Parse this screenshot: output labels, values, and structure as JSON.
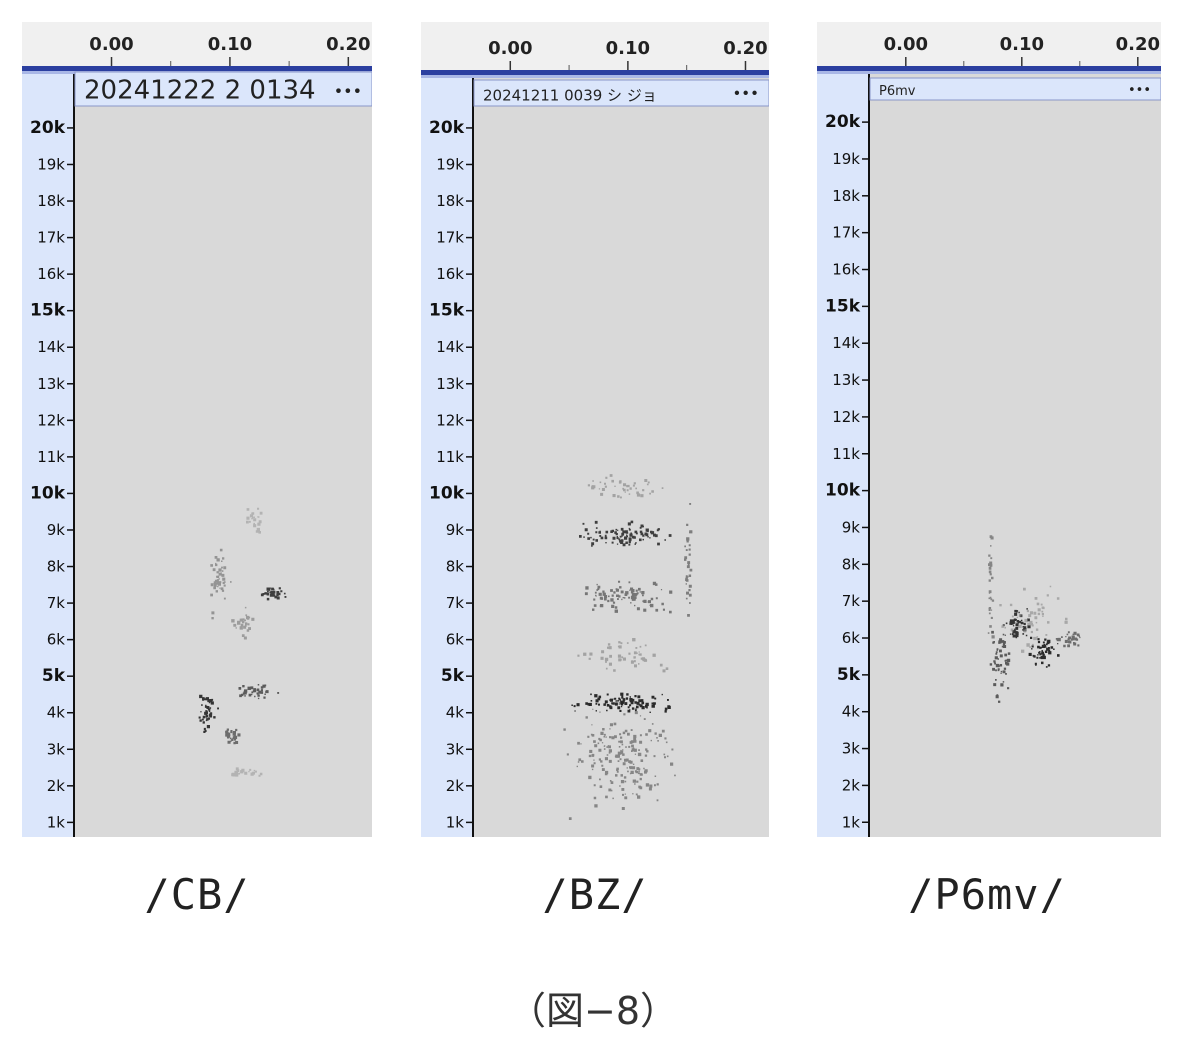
{
  "figure_caption": "（図−8）",
  "time_axis": {
    "ticks": [
      "0.00",
      "0.10",
      "0.20"
    ],
    "values": [
      0.0,
      0.1,
      0.2
    ],
    "range": [
      -0.03,
      0.22
    ]
  },
  "freq_axis": {
    "ticks": [
      "20k",
      "19k",
      "18k",
      "17k",
      "16k",
      "15k",
      "14k",
      "13k",
      "12k",
      "11k",
      "10k",
      "9k",
      "8k",
      "7k",
      "6k",
      "5k",
      "4k",
      "3k",
      "2k",
      "1k"
    ],
    "values": [
      20,
      19,
      18,
      17,
      16,
      15,
      14,
      13,
      12,
      11,
      10,
      9,
      8,
      7,
      6,
      5,
      4,
      3,
      2,
      1
    ],
    "major": [
      20,
      15,
      10,
      5
    ],
    "unit": "k"
  },
  "menu_glyph": "•••",
  "colors": {
    "background": "#d9d9d9",
    "ruler": "#f0f0f0",
    "border": "#2b3fa0",
    "sidebar": "#dbe6fb",
    "title_bar": "#dbe6fb"
  },
  "panels": [
    {
      "track_title": "20241222 2 0134",
      "caption": "/CB/"
    },
    {
      "track_title": "20241211 0039 シ ジョ",
      "caption": "/BZ/"
    },
    {
      "track_title": "P6mv",
      "caption": "/P6mv/"
    }
  ],
  "chart_data": [
    {
      "type": "heatmap",
      "xlabel": "",
      "ylabel": "",
      "xlim": [
        -0.03,
        0.22
      ],
      "ylim": [
        0.6,
        20.6
      ],
      "y_unit": "kHz",
      "marks": [
        {
          "cx": 0.08,
          "cy": 4.1,
          "rx": 0.01,
          "ry": 0.8,
          "dens": 0.9
        },
        {
          "cx": 0.1,
          "cy": 3.4,
          "rx": 0.01,
          "ry": 0.4,
          "dens": 0.6
        },
        {
          "cx": 0.12,
          "cy": 4.6,
          "rx": 0.022,
          "ry": 0.25,
          "dens": 0.7
        },
        {
          "cx": 0.09,
          "cy": 7.6,
          "rx": 0.016,
          "ry": 1.2,
          "dens": 0.35
        },
        {
          "cx": 0.135,
          "cy": 7.3,
          "rx": 0.016,
          "ry": 0.25,
          "dens": 0.85
        },
        {
          "cx": 0.11,
          "cy": 6.5,
          "rx": 0.012,
          "ry": 0.5,
          "dens": 0.3
        },
        {
          "cx": 0.12,
          "cy": 9.3,
          "rx": 0.01,
          "ry": 0.5,
          "dens": 0.12
        },
        {
          "cx": 0.11,
          "cy": 2.4,
          "rx": 0.02,
          "ry": 0.15,
          "dens": 0.12
        }
      ]
    },
    {
      "type": "heatmap",
      "xlabel": "",
      "ylabel": "",
      "xlim": [
        -0.03,
        0.22
      ],
      "ylim": [
        0.6,
        20.6
      ],
      "y_unit": "kHz",
      "marks": [
        {
          "cx": 0.095,
          "cy": 2.8,
          "rx": 0.055,
          "ry": 1.9,
          "dens": 0.45
        },
        {
          "cx": 0.095,
          "cy": 4.3,
          "rx": 0.055,
          "ry": 0.35,
          "dens": 0.95
        },
        {
          "cx": 0.095,
          "cy": 7.2,
          "rx": 0.055,
          "ry": 0.6,
          "dens": 0.55
        },
        {
          "cx": 0.095,
          "cy": 8.9,
          "rx": 0.05,
          "ry": 0.45,
          "dens": 0.85
        },
        {
          "cx": 0.095,
          "cy": 10.2,
          "rx": 0.05,
          "ry": 0.5,
          "dens": 0.25
        },
        {
          "cx": 0.095,
          "cy": 5.6,
          "rx": 0.055,
          "ry": 0.6,
          "dens": 0.25
        },
        {
          "cx": 0.15,
          "cy": 8.0,
          "rx": 0.004,
          "ry": 2.0,
          "dens": 0.5
        }
      ]
    },
    {
      "type": "heatmap",
      "xlabel": "",
      "ylabel": "",
      "xlim": [
        -0.03,
        0.22
      ],
      "ylim": [
        0.6,
        20.6
      ],
      "y_unit": "kHz",
      "marks": [
        {
          "cx": 0.072,
          "cy": 7.5,
          "rx": 0.003,
          "ry": 2.2,
          "dens": 0.45
        },
        {
          "cx": 0.08,
          "cy": 5.5,
          "rx": 0.01,
          "ry": 1.3,
          "dens": 0.7
        },
        {
          "cx": 0.095,
          "cy": 6.4,
          "rx": 0.012,
          "ry": 0.7,
          "dens": 0.9
        },
        {
          "cx": 0.118,
          "cy": 5.6,
          "rx": 0.016,
          "ry": 0.5,
          "dens": 0.95
        },
        {
          "cx": 0.14,
          "cy": 6.0,
          "rx": 0.016,
          "ry": 0.25,
          "dens": 0.6
        },
        {
          "cx": 0.11,
          "cy": 6.6,
          "rx": 0.035,
          "ry": 1.2,
          "dens": 0.2
        }
      ]
    }
  ]
}
